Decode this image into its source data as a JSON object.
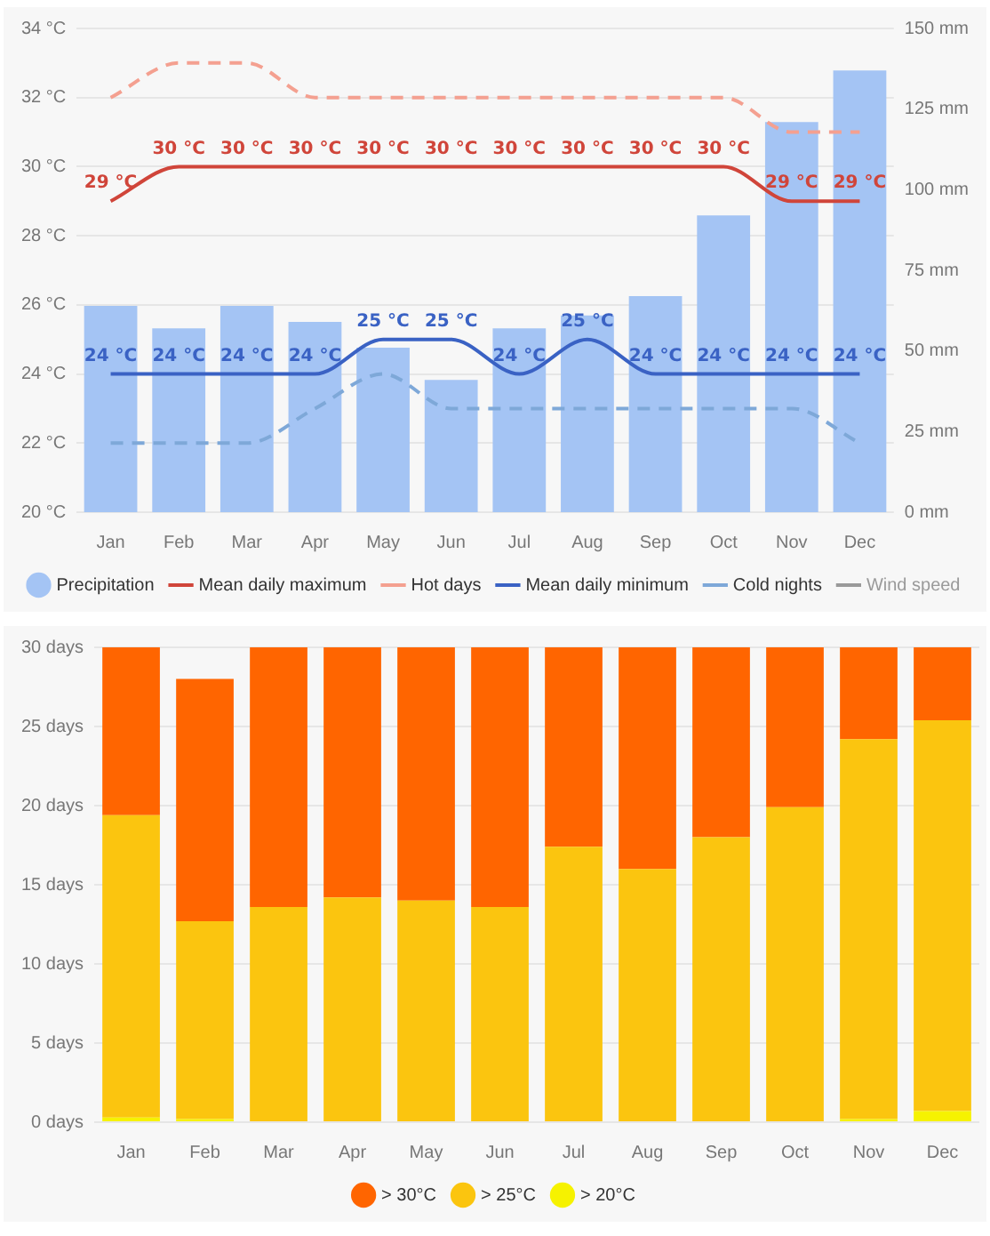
{
  "chart_data": [
    {
      "type": "bar",
      "categories": [
        "Jan",
        "Feb",
        "Mar",
        "Apr",
        "May",
        "Jun",
        "Jul",
        "Aug",
        "Sep",
        "Oct",
        "Nov",
        "Dec"
      ],
      "series": [
        {
          "name": "Precipitation",
          "axis": "y2",
          "color": "#a4c4f4",
          "values": [
            64,
            57,
            64,
            59,
            51,
            41,
            57,
            61,
            67,
            92,
            121,
            137
          ]
        },
        {
          "name": "Mean daily maximum",
          "type": "line",
          "color": "#d0453a",
          "line_style": "solid",
          "values": [
            29,
            30,
            30,
            30,
            30,
            30,
            30,
            30,
            30,
            30,
            29,
            29
          ],
          "value_labels": [
            "29 °C",
            "30 °C",
            "30 °C",
            "30 °C",
            "30 °C",
            "30 °C",
            "30 °C",
            "30 °C",
            "30 °C",
            "30 °C",
            "29 °C",
            "29 °C"
          ]
        },
        {
          "name": "Hot days",
          "type": "line",
          "color": "#f4a090",
          "line_style": "dashed",
          "values": [
            32,
            33,
            33,
            32,
            32,
            32,
            32,
            32,
            32,
            32,
            31,
            31
          ]
        },
        {
          "name": "Mean daily minimum",
          "type": "line",
          "color": "#3a62c4",
          "line_style": "solid",
          "values": [
            24,
            24,
            24,
            24,
            25,
            25,
            24,
            25,
            24,
            24,
            24,
            24
          ],
          "value_labels": [
            "24 °C",
            "24 °C",
            "24 °C",
            "24 °C",
            "25 °C",
            "25 °C",
            "24 °C",
            "25 °C",
            "24 °C",
            "24 °C",
            "24 °C",
            "24 °C"
          ]
        },
        {
          "name": "Cold nights",
          "type": "line",
          "color": "#7ea8d8",
          "line_style": "dashed",
          "values": [
            22,
            22,
            22,
            23,
            24,
            23,
            23,
            23,
            23,
            23,
            23,
            22
          ]
        },
        {
          "name": "Wind speed",
          "type": "line",
          "color": "#9a9a9a",
          "line_style": "solid",
          "values": [
            null,
            null,
            null,
            null,
            null,
            null,
            null,
            null,
            null,
            null,
            null,
            null
          ]
        }
      ],
      "ylim": [
        20,
        34
      ],
      "yticks": [
        {
          "value": 20,
          "label": "20 °C"
        },
        {
          "value": 22,
          "label": "22 °C"
        },
        {
          "value": 24,
          "label": "24 °C"
        },
        {
          "value": 26,
          "label": "26 °C"
        },
        {
          "value": 28,
          "label": "28 °C"
        },
        {
          "value": 30,
          "label": "30 °C"
        },
        {
          "value": 32,
          "label": "32 °C"
        },
        {
          "value": 34,
          "label": "34 °C"
        }
      ],
      "y2lim": [
        0,
        150
      ],
      "y2ticks": [
        {
          "value": 0,
          "label": "0 mm"
        },
        {
          "value": 25,
          "label": "25 mm"
        },
        {
          "value": 50,
          "label": "50 mm"
        },
        {
          "value": 75,
          "label": "75 mm"
        },
        {
          "value": 100,
          "label": "100 mm"
        },
        {
          "value": 125,
          "label": "125 mm"
        },
        {
          "value": 150,
          "label": "150 mm"
        }
      ],
      "grid": "y",
      "legend": "bottom",
      "marker": "none"
    },
    {
      "type": "bar",
      "stacked": true,
      "categories": [
        "Jan",
        "Feb",
        "Mar",
        "Apr",
        "May",
        "Jun",
        "Jul",
        "Aug",
        "Sep",
        "Oct",
        "Nov",
        "Dec"
      ],
      "series": [
        {
          "name": "> 20°C",
          "color": "#f6f200",
          "values": [
            0.3,
            0.2,
            0,
            0,
            0,
            0,
            0,
            0,
            0,
            0,
            0.2,
            0.7
          ]
        },
        {
          "name": "> 25°C",
          "color": "#fbc50f",
          "values": [
            19.1,
            12.5,
            13.6,
            14.2,
            14,
            13.6,
            17.4,
            16,
            18,
            19.9,
            24,
            24.7
          ]
        },
        {
          "name": "> 30°C",
          "color": "#ff6500",
          "values": [
            10.6,
            15.3,
            16.4,
            15.8,
            16,
            16.4,
            12.6,
            14,
            12,
            10.1,
            5.8,
            4.6
          ]
        }
      ],
      "ylim": [
        0,
        30
      ],
      "yticks": [
        {
          "value": 0,
          "label": "0 days"
        },
        {
          "value": 5,
          "label": "5 days"
        },
        {
          "value": 10,
          "label": "10 days"
        },
        {
          "value": 15,
          "label": "15 days"
        },
        {
          "value": 20,
          "label": "20 days"
        },
        {
          "value": 25,
          "label": "25 days"
        },
        {
          "value": 30,
          "label": "30 days"
        }
      ],
      "grid": "y",
      "legend": "bottom"
    }
  ]
}
